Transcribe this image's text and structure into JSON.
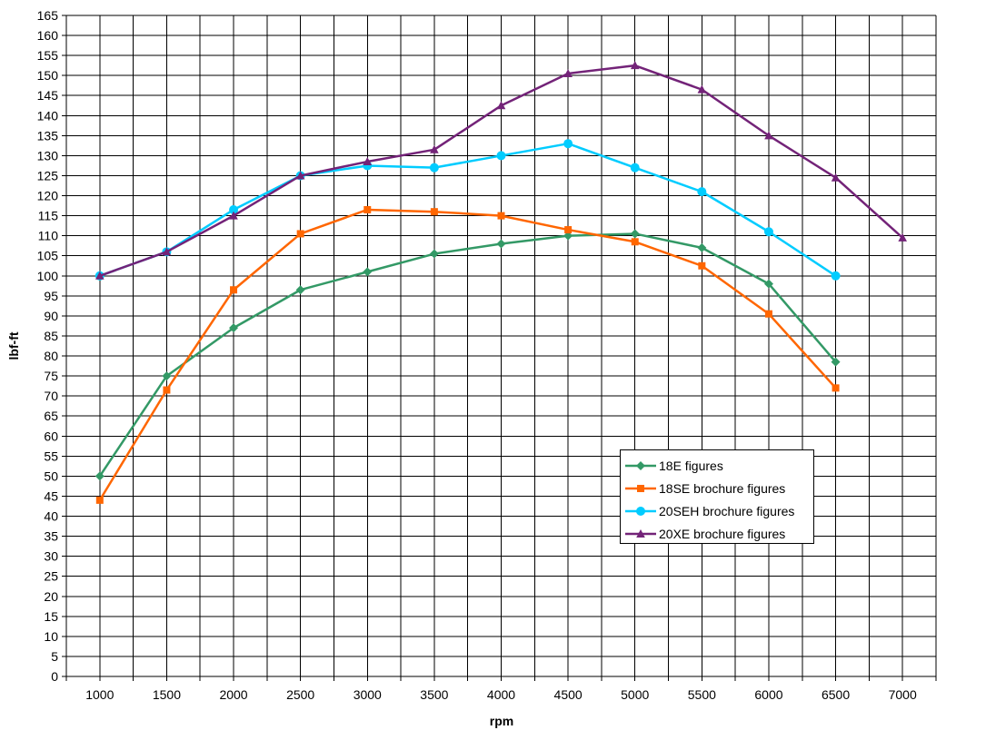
{
  "chart_data": {
    "type": "line",
    "title": "",
    "xlabel": "rpm",
    "ylabel": "lbf-ft",
    "grid": true,
    "legend_position": "center-right-box",
    "x_axis": {
      "min": 750,
      "max": 7250,
      "gridline_step": 250,
      "tick_labels": [
        1000,
        1500,
        2000,
        2500,
        3000,
        3500,
        4000,
        4500,
        5000,
        5500,
        6000,
        6500,
        7000
      ]
    },
    "y_axis": {
      "min": 0,
      "max": 165,
      "gridline_step": 5,
      "tick_labels": [
        0,
        5,
        10,
        15,
        20,
        25,
        30,
        35,
        40,
        45,
        50,
        55,
        60,
        65,
        70,
        75,
        80,
        85,
        90,
        95,
        100,
        105,
        110,
        115,
        120,
        125,
        130,
        135,
        140,
        145,
        150,
        155,
        160,
        165
      ]
    },
    "x": [
      1000,
      1500,
      2000,
      2500,
      3000,
      3500,
      4000,
      4500,
      5000,
      5500,
      6000,
      6500,
      7000
    ],
    "series": [
      {
        "name": "18E figures",
        "color": "#339966",
        "marker": "diamond",
        "values": [
          50,
          75,
          87,
          96.5,
          101,
          105.5,
          108,
          110,
          110.5,
          107,
          98,
          78.5,
          null
        ]
      },
      {
        "name": "18SE brochure figures",
        "color": "#FF6600",
        "marker": "square",
        "values": [
          44,
          71.5,
          96.5,
          110.5,
          116.5,
          116,
          115,
          111.5,
          108.5,
          102.5,
          90.5,
          72,
          null
        ]
      },
      {
        "name": "20SEH brochure figures",
        "color": "#00CCFF",
        "marker": "circle",
        "values": [
          100,
          106,
          116.5,
          125,
          127.5,
          127,
          130,
          133,
          127,
          121,
          111,
          100,
          null
        ]
      },
      {
        "name": "20XE brochure figures",
        "color": "#732378",
        "marker": "triangle",
        "values": [
          100,
          106,
          115,
          125,
          128.5,
          131.5,
          142.5,
          150.5,
          152.5,
          146.5,
          135,
          124.5,
          109.5
        ]
      }
    ]
  }
}
